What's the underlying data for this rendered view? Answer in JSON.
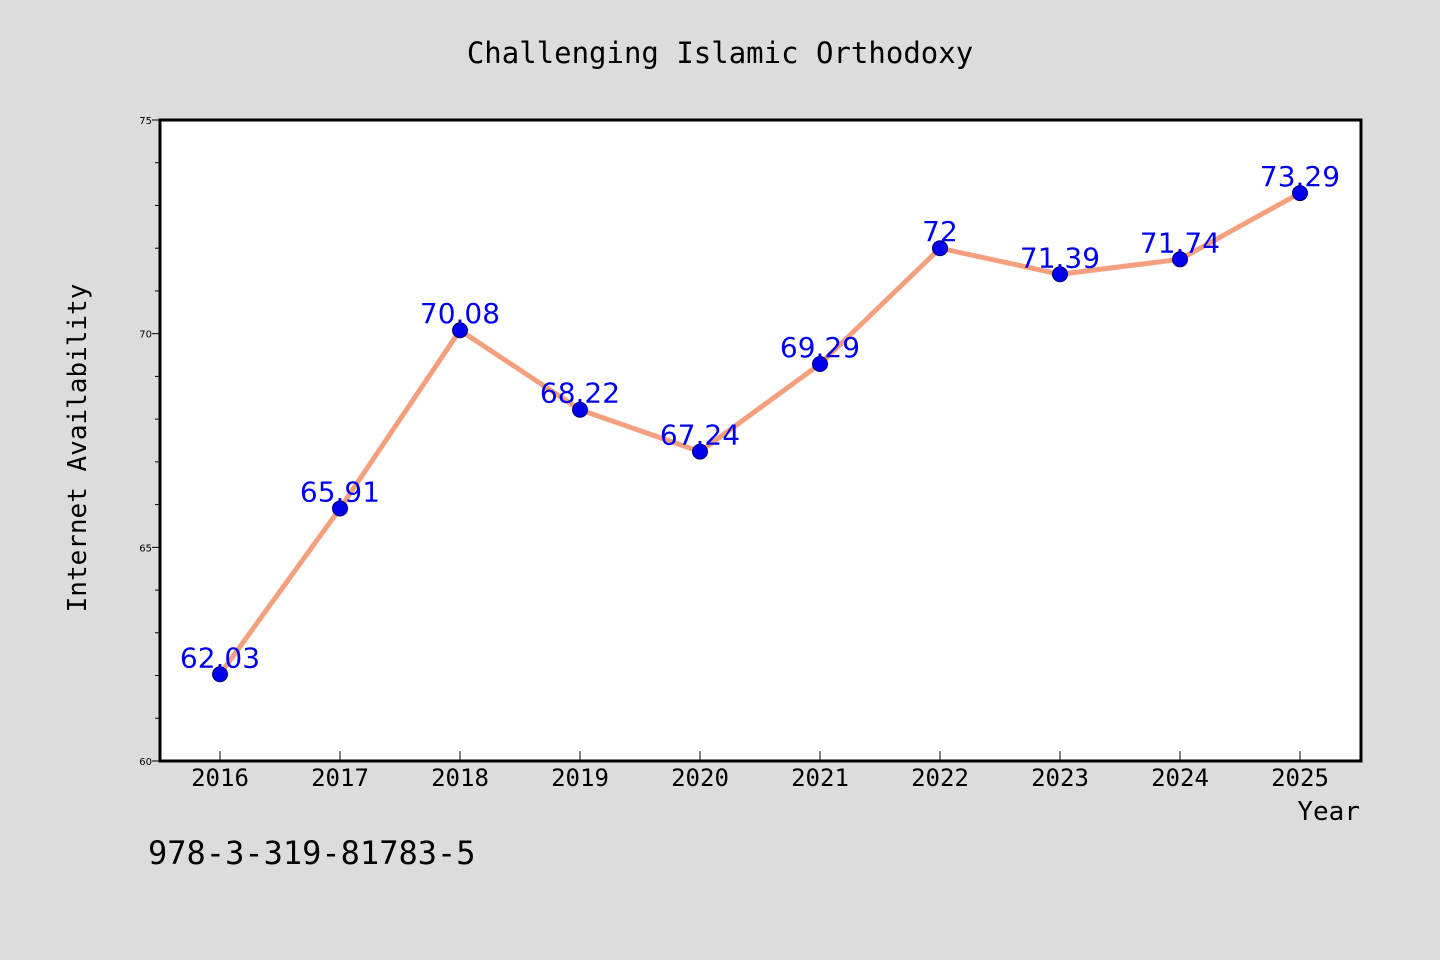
{
  "chart_data": {
    "type": "line",
    "title": "Challenging Islamic Orthodoxy",
    "xlabel": "Year",
    "ylabel": "Internet Availability",
    "categories": [
      "2016",
      "2017",
      "2018",
      "2019",
      "2020",
      "2021",
      "2022",
      "2023",
      "2024",
      "2025"
    ],
    "series": [
      {
        "values": [
          62.03,
          65.91,
          70.08,
          68.22,
          67.24,
          69.29,
          72,
          71.39,
          71.74,
          73.29
        ],
        "data_labels": [
          "62.03",
          "65.91",
          "70.08",
          "68.22",
          "67.24",
          "69.29",
          "72",
          "71.39",
          "71.74",
          "73.29"
        ]
      }
    ],
    "ylim": [
      60,
      75
    ],
    "y_major_ticks": [
      "60",
      "65",
      "70",
      "75"
    ],
    "grid": false,
    "legend": "none",
    "line_color": "#f4a07e",
    "marker_color": "#0000ee",
    "label_color": "#0000ee",
    "background_color": "#dcdcdc",
    "plot_background": "#ffffff"
  },
  "footer_text": "978-3-319-81783-5"
}
